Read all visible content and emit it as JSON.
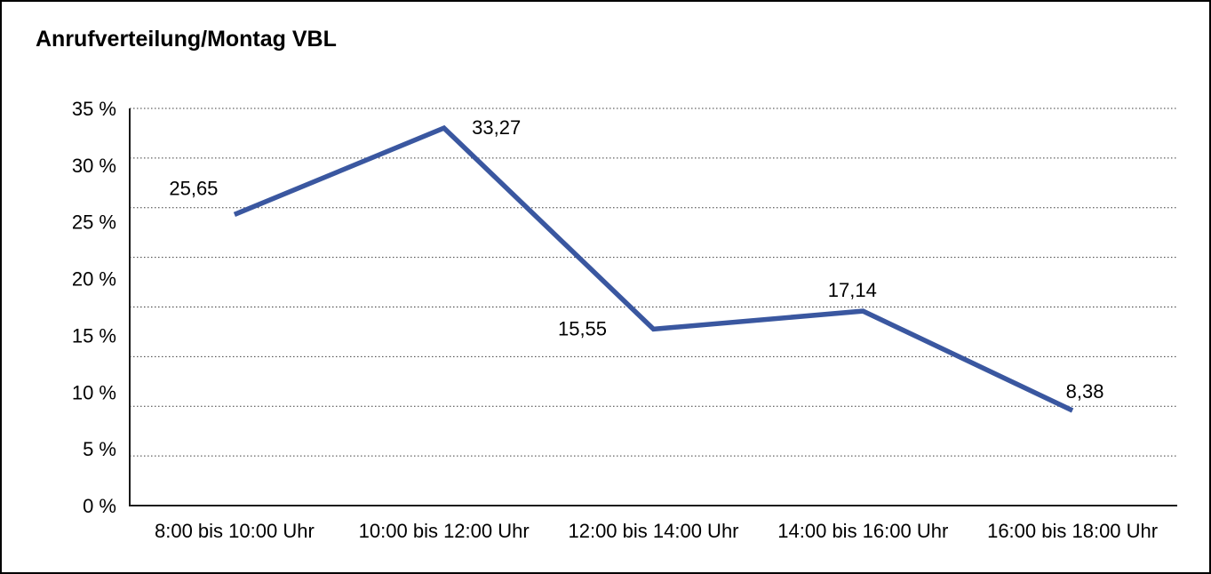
{
  "title": "Anrufverteilung/Montag VBL",
  "chart_data": {
    "type": "line",
    "title": "Anrufverteilung/Montag VBL",
    "categories": [
      "8:00 bis 10:00 Uhr",
      "10:00 bis 12:00 Uhr",
      "12:00 bis 14:00 Uhr",
      "14:00 bis 16:00 Uhr",
      "16:00 bis 18:00 Uhr"
    ],
    "values": [
      25.65,
      33.27,
      15.55,
      17.14,
      8.38
    ],
    "value_labels": [
      "25,65",
      "33,27",
      "15,55",
      "17,14",
      "8,38"
    ],
    "xlabel": "",
    "ylabel": "",
    "ylim": [
      0,
      35
    ],
    "y_tick_values": [
      35,
      30,
      25,
      20,
      15,
      10,
      5,
      0
    ],
    "y_tick_labels": [
      "35 %",
      "30 %",
      "25 %",
      "20 %",
      "15 %",
      "10 %",
      "5 %",
      "0 %"
    ],
    "grid": "horizontal-dotted",
    "grid_intervals": 8,
    "legend": "none",
    "line_color": "#3A57A0",
    "axis_color": "#1a1a1a",
    "gridline_color": "#3c3c3c",
    "text_color": "#000000"
  }
}
